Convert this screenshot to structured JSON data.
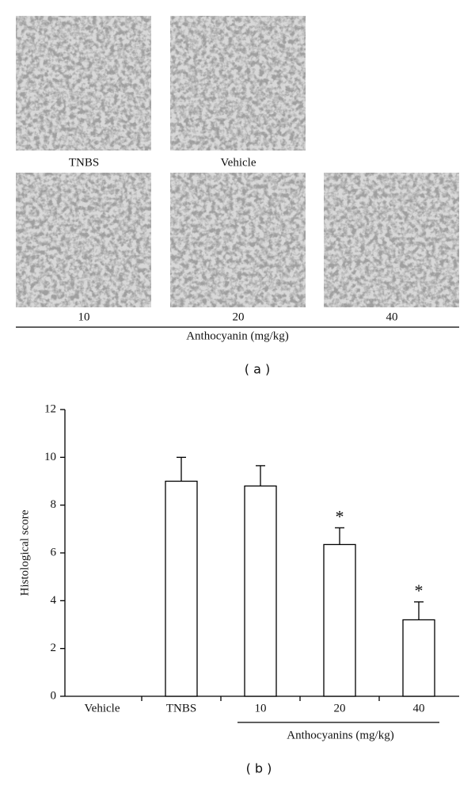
{
  "panel_a": {
    "images": [
      {
        "caption": "TNBS"
      },
      {
        "caption": "Vehicle"
      },
      {
        "caption": "10"
      },
      {
        "caption": "20"
      },
      {
        "caption": "40"
      }
    ],
    "group_label": "Anthocyanin (mg/kg)",
    "label": "( a )"
  },
  "chart_data": {
    "type": "bar",
    "categories": [
      "Vehicle",
      "TNBS",
      "10",
      "20",
      "40"
    ],
    "values": [
      0,
      9.0,
      8.8,
      6.35,
      3.2
    ],
    "errors": [
      null,
      1.0,
      0.85,
      0.7,
      0.75
    ],
    "color": "#ffffff",
    "ylabel": "Histological score",
    "ylim": [
      0,
      12
    ],
    "yticks": [
      0,
      2,
      4,
      6,
      8,
      10,
      12
    ],
    "group_label": "Anthocyanins (mg/kg)",
    "annotations": [
      {
        "text": "*",
        "category": "20"
      },
      {
        "text": "*",
        "category": "40"
      }
    ],
    "grid": false
  },
  "panel_b_label": "( b )"
}
